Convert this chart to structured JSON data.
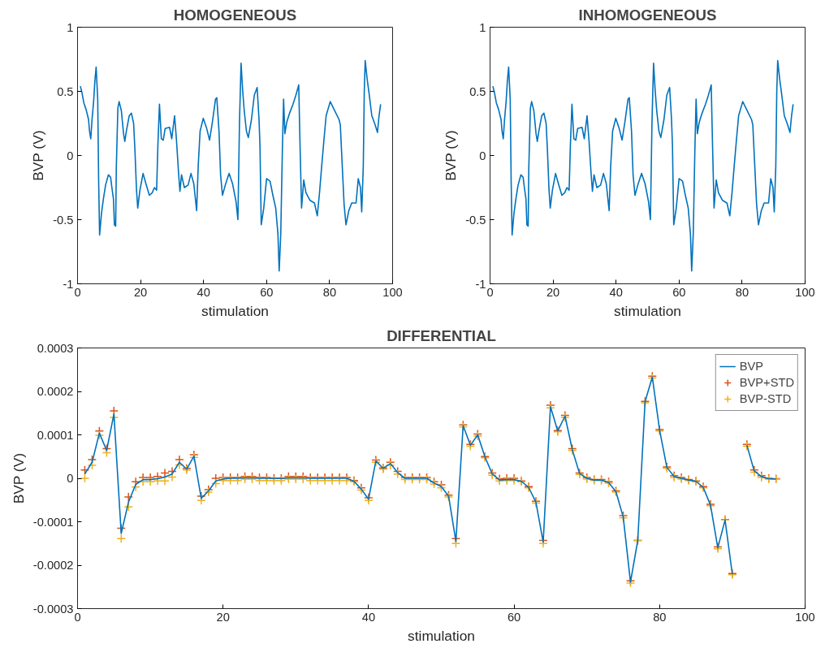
{
  "chart_data": [
    {
      "type": "line",
      "title": "HOMOGENEOUS",
      "xlabel": "stimulation",
      "ylabel": "BVP (V)",
      "color": "#0072bd",
      "x": [
        0.9,
        1.4,
        2.0,
        2.7,
        3.5,
        3.8,
        4.2,
        4.6,
        5.1,
        5.5,
        5.9,
        6.4,
        6.7,
        7.0,
        7.6,
        8.2,
        8.9,
        9.8,
        10.5,
        10.9,
        11.4,
        11.7,
        12.1,
        12.3,
        12.8,
        13.2,
        13.9,
        14.6,
        15.0,
        15.5,
        16.4,
        17.1,
        17.8,
        18.2,
        18.7,
        19.1,
        19.8,
        20.8,
        21.7,
        22.8,
        23.7,
        24.4,
        25.1,
        25.5,
        26.0,
        26.6,
        27.2,
        27.8,
        29.2,
        29.9,
        30.8,
        31.4,
        32.1,
        32.5,
        33.0,
        33.9,
        35.1,
        36.0,
        36.9,
        37.8,
        38.3,
        38.9,
        39.9,
        41.0,
        41.9,
        42.8,
        43.8,
        44.2,
        44.9,
        45.4,
        46.0,
        46.9,
        48.1,
        49.2,
        50.3,
        50.9,
        51.4,
        51.9,
        52.4,
        52.9,
        53.6,
        54.2,
        55.2,
        56.1,
        57.0,
        57.6,
        57.9,
        58.3,
        59.1,
        60.0,
        61.1,
        62.0,
        62.9,
        63.6,
        64.0,
        64.5,
        65.0,
        65.4,
        65.8,
        66.4,
        67.3,
        68.4,
        69.3,
        70.2,
        70.6,
        71.1,
        71.8,
        72.5,
        73.8,
        75.2,
        76.1,
        76.8,
        77.5,
        78.2,
        78.9,
        80.2,
        81.6,
        83.0,
        83.4,
        83.9,
        84.6,
        85.2,
        86.1,
        87.0,
        88.4,
        89.1,
        89.8,
        90.2,
        90.7,
        91.0,
        91.3,
        91.9,
        92.5,
        93.4,
        94.3,
        95.2,
        95.7,
        96.2
      ],
      "values": [
        0.54,
        0.49,
        0.41,
        0.36,
        0.28,
        0.19,
        0.13,
        0.28,
        0.42,
        0.58,
        0.69,
        0.44,
        -0.2,
        -0.62,
        -0.45,
        -0.34,
        -0.23,
        -0.15,
        -0.17,
        -0.25,
        -0.34,
        -0.54,
        -0.55,
        -0.1,
        0.37,
        0.42,
        0.35,
        0.17,
        0.11,
        0.19,
        0.31,
        0.33,
        0.25,
        0.05,
        -0.26,
        -0.41,
        -0.27,
        -0.14,
        -0.22,
        -0.31,
        -0.29,
        -0.25,
        -0.27,
        0.08,
        0.4,
        0.13,
        0.12,
        0.21,
        0.22,
        0.13,
        0.31,
        0.12,
        -0.15,
        -0.28,
        -0.15,
        -0.25,
        -0.23,
        -0.14,
        -0.22,
        -0.43,
        -0.08,
        0.19,
        0.29,
        0.21,
        0.12,
        0.26,
        0.44,
        0.45,
        0.19,
        -0.15,
        -0.31,
        -0.23,
        -0.14,
        -0.22,
        -0.36,
        -0.5,
        0.26,
        0.72,
        0.51,
        0.35,
        0.19,
        0.14,
        0.28,
        0.47,
        0.53,
        0.28,
        0.08,
        -0.54,
        -0.41,
        -0.18,
        -0.2,
        -0.31,
        -0.41,
        -0.61,
        -0.9,
        -0.61,
        0.03,
        0.44,
        0.17,
        0.26,
        0.33,
        0.4,
        0.47,
        0.55,
        0.1,
        -0.41,
        -0.19,
        -0.29,
        -0.35,
        -0.37,
        -0.47,
        -0.29,
        -0.08,
        0.12,
        0.31,
        0.42,
        0.35,
        0.28,
        0.24,
        -0.02,
        -0.38,
        -0.54,
        -0.43,
        -0.37,
        -0.37,
        -0.18,
        -0.25,
        -0.44,
        -0.08,
        0.49,
        0.74,
        0.6,
        0.49,
        0.31,
        0.25,
        0.18,
        0.31,
        0.4
      ],
      "xlim": [
        0,
        100
      ],
      "ylim": [
        -1,
        1
      ],
      "xticks": [
        0,
        20,
        40,
        60,
        80,
        100
      ],
      "yticks": [
        -1,
        -0.5,
        0,
        0.5,
        1
      ],
      "grid": false
    },
    {
      "type": "line",
      "title": "INHOMOGENEOUS",
      "xlabel": "stimulation",
      "ylabel": "BVP (V)",
      "color": "#0072bd",
      "x": [
        0.9,
        1.4,
        2.0,
        2.7,
        3.5,
        3.8,
        4.2,
        4.6,
        5.1,
        5.5,
        5.9,
        6.4,
        6.7,
        7.0,
        7.6,
        8.2,
        8.9,
        9.8,
        10.5,
        10.9,
        11.4,
        11.7,
        12.1,
        12.3,
        12.8,
        13.2,
        13.9,
        14.6,
        15.0,
        15.5,
        16.4,
        17.1,
        17.8,
        18.2,
        18.7,
        19.1,
        19.8,
        20.8,
        21.7,
        22.8,
        23.7,
        24.4,
        25.1,
        25.5,
        26.0,
        26.6,
        27.2,
        27.8,
        29.2,
        29.9,
        30.8,
        31.4,
        32.1,
        32.5,
        33.0,
        33.9,
        35.1,
        36.0,
        36.9,
        37.8,
        38.3,
        38.9,
        39.9,
        41.0,
        41.9,
        42.8,
        43.8,
        44.2,
        44.9,
        45.4,
        46.0,
        46.9,
        48.1,
        49.2,
        50.3,
        50.9,
        51.4,
        51.9,
        52.4,
        52.9,
        53.6,
        54.2,
        55.2,
        56.1,
        57.0,
        57.6,
        57.9,
        58.3,
        59.1,
        60.0,
        61.1,
        62.0,
        62.9,
        63.6,
        64.0,
        64.5,
        65.0,
        65.4,
        65.8,
        66.4,
        67.3,
        68.4,
        69.3,
        70.2,
        70.6,
        71.1,
        71.8,
        72.5,
        73.8,
        75.2,
        76.1,
        76.8,
        77.5,
        78.2,
        78.9,
        80.2,
        81.6,
        83.0,
        83.4,
        83.9,
        84.6,
        85.2,
        86.1,
        87.0,
        88.4,
        89.1,
        89.8,
        90.2,
        90.7,
        91.0,
        91.3,
        91.9,
        92.5,
        93.4,
        94.3,
        95.2,
        95.7,
        96.2
      ],
      "values": [
        0.54,
        0.49,
        0.41,
        0.36,
        0.28,
        0.19,
        0.13,
        0.28,
        0.42,
        0.58,
        0.69,
        0.44,
        -0.2,
        -0.62,
        -0.45,
        -0.34,
        -0.23,
        -0.15,
        -0.17,
        -0.25,
        -0.34,
        -0.54,
        -0.55,
        -0.1,
        0.37,
        0.42,
        0.35,
        0.17,
        0.11,
        0.19,
        0.31,
        0.33,
        0.25,
        0.05,
        -0.26,
        -0.41,
        -0.27,
        -0.14,
        -0.22,
        -0.31,
        -0.29,
        -0.25,
        -0.27,
        0.08,
        0.4,
        0.13,
        0.12,
        0.21,
        0.22,
        0.13,
        0.31,
        0.12,
        -0.15,
        -0.28,
        -0.15,
        -0.25,
        -0.23,
        -0.14,
        -0.22,
        -0.43,
        -0.08,
        0.19,
        0.29,
        0.21,
        0.12,
        0.26,
        0.44,
        0.45,
        0.19,
        -0.15,
        -0.31,
        -0.23,
        -0.14,
        -0.22,
        -0.36,
        -0.5,
        0.26,
        0.72,
        0.51,
        0.35,
        0.19,
        0.14,
        0.28,
        0.47,
        0.53,
        0.28,
        0.08,
        -0.54,
        -0.41,
        -0.18,
        -0.2,
        -0.31,
        -0.41,
        -0.61,
        -0.9,
        -0.61,
        0.03,
        0.44,
        0.17,
        0.26,
        0.33,
        0.4,
        0.47,
        0.55,
        0.1,
        -0.41,
        -0.19,
        -0.29,
        -0.35,
        -0.37,
        -0.47,
        -0.29,
        -0.08,
        0.12,
        0.31,
        0.42,
        0.35,
        0.28,
        0.24,
        -0.02,
        -0.38,
        -0.54,
        -0.43,
        -0.37,
        -0.37,
        -0.18,
        -0.25,
        -0.44,
        -0.08,
        0.49,
        0.74,
        0.6,
        0.49,
        0.31,
        0.25,
        0.18,
        0.31,
        0.4
      ],
      "xlim": [
        0,
        100
      ],
      "ylim": [
        -1,
        1
      ],
      "xticks": [
        0,
        20,
        40,
        60,
        80,
        100
      ],
      "yticks": [
        -1,
        -0.5,
        0,
        0.5,
        1
      ],
      "grid": false
    },
    {
      "type": "line",
      "title": "DIFFERENTIAL",
      "xlabel": "stimulation",
      "ylabel": "BVP (V)",
      "x": [
        1,
        2,
        3,
        4,
        5,
        6,
        7,
        8,
        9,
        10,
        11,
        12,
        13,
        14,
        15,
        16,
        17,
        18,
        19,
        20,
        21,
        22,
        23,
        24,
        25,
        26,
        27,
        28,
        29,
        30,
        31,
        32,
        33,
        34,
        35,
        36,
        37,
        38,
        39,
        40,
        41,
        42,
        43,
        44,
        45,
        46,
        47,
        48,
        49,
        50,
        51,
        52,
        53,
        54,
        55,
        56,
        57,
        58,
        59,
        60,
        61,
        62,
        63,
        64,
        65,
        66,
        67,
        68,
        69,
        70,
        71,
        72,
        73,
        74,
        75,
        76,
        77,
        78,
        79,
        80,
        81,
        82,
        83,
        84,
        85,
        86,
        87,
        88,
        89,
        90,
        91,
        92,
        93,
        94,
        95,
        96
      ],
      "series": [
        {
          "name": "BVP",
          "type": "line",
          "color": "#0072bd",
          "values": [
            1e-05,
            3.7e-05,
            0.000104,
            6.4e-05,
            0.000148,
            -0.000127,
            -5.5e-05,
            -1.4e-05,
            -3e-06,
            -3e-06,
            -1e-06,
            3e-06,
            1e-05,
            3.7e-05,
            2.1e-05,
            5.1e-05,
            -4.6e-05,
            -2.9e-05,
            -6e-06,
            -2e-06,
            0,
            0,
            1e-06,
            1e-06,
            0,
            0,
            0,
            0,
            1e-06,
            1e-06,
            1e-06,
            0,
            0,
            0,
            0,
            0,
            0,
            -7e-06,
            -2.5e-05,
            -4.8e-05,
            4e-05,
            2.3e-05,
            3.4e-05,
            1.3e-05,
            0,
            0,
            0,
            0,
            -1.1e-05,
            -1.9e-05,
            -4.1e-05,
            -0.000145,
            0.000121,
            7.6e-05,
            0.0001,
            4.9e-05,
            1e-05,
            -4e-06,
            -3e-06,
            -3e-06,
            -7e-06,
            -2.1e-05,
            -5.5e-05,
            -0.000147,
            0.000165,
            0.000109,
            0.000143,
            6.6e-05,
            1.1e-05,
            0,
            -4e-06,
            -4e-06,
            -1e-05,
            -3.1e-05,
            -8.9e-05,
            -0.000239,
            -0.000143,
            0.000176,
            0.000233,
            0.000111,
            2.5e-05,
            4e-06,
            0,
            -4e-06,
            -7e-06,
            -2.1e-05,
            -6.2e-05,
            -0.00016,
            -9.6e-05,
            -0.000221,
            null,
            7.6e-05,
            1.7e-05,
            4e-06,
            -1e-06,
            -2e-06
          ]
        },
        {
          "name": "BVP+STD",
          "type": "scatter",
          "marker": "cross",
          "color": "#d95319",
          "values": [
            1.9e-05,
            4.3e-05,
            0.000109,
            6.8e-05,
            0.000155,
            -0.000115,
            -4.3e-05,
            -8e-06,
            2e-06,
            2e-06,
            4e-06,
            1.2e-05,
            1.6e-05,
            4.3e-05,
            2.3e-05,
            5.4e-05,
            -4.1e-05,
            -2.6e-05,
            0,
            2e-06,
            2e-06,
            2e-06,
            4e-06,
            4e-06,
            2e-06,
            2e-06,
            0,
            0,
            4e-06,
            4e-06,
            4e-06,
            2e-06,
            2e-06,
            2e-06,
            2e-06,
            2e-06,
            2e-06,
            -5e-06,
            -2.2e-05,
            -4.5e-05,
            4.2e-05,
            2.4e-05,
            3.7e-05,
            1.6e-05,
            2e-06,
            2e-06,
            2e-06,
            2e-06,
            -8e-06,
            -1.5e-05,
            -3.9e-05,
            -0.000139,
            0.000123,
            7.8e-05,
            0.000102,
            5e-05,
            1.2e-05,
            -1e-06,
            0,
            0,
            -6e-06,
            -1.9e-05,
            -5.3e-05,
            -0.000143,
            0.000168,
            0.00011,
            0.000145,
            6.8e-05,
            1.2e-05,
            2e-06,
            -3e-06,
            -3e-06,
            -8e-06,
            -2.9e-05,
            -8.6e-05,
            -0.000236,
            -0.000143,
            0.000177,
            0.000235,
            0.000112,
            2.6e-05,
            6e-06,
            2e-06,
            -3e-06,
            -6e-06,
            -1.9e-05,
            -6e-05,
            -0.000158,
            -9.5e-05,
            -0.000219,
            null,
            7.8e-05,
            1.9e-05,
            6e-06,
            0,
            -1e-06
          ]
        },
        {
          "name": "BVP-STD",
          "type": "scatter",
          "marker": "cross",
          "color": "#edb120",
          "values": [
            0,
            3e-05,
            9.9e-05,
            5.9e-05,
            0.00014,
            -0.000139,
            -6.6e-05,
            -2e-05,
            -8e-06,
            -8e-06,
            -6e-06,
            -6e-06,
            3e-06,
            3.1e-05,
            1.9e-05,
            4.8e-05,
            -5.1e-05,
            -3.2e-05,
            -1.2e-05,
            -5e-06,
            -5e-06,
            -5e-06,
            -2e-06,
            -2e-06,
            -5e-06,
            -5e-06,
            -5e-06,
            -5e-06,
            -2e-06,
            -2e-06,
            -2e-06,
            -5e-06,
            -5e-06,
            -5e-06,
            -5e-06,
            -5e-06,
            -5e-06,
            -8e-06,
            -2.7e-05,
            -5.1e-05,
            3.7e-05,
            2.1e-05,
            3e-05,
            1e-05,
            -3e-06,
            -3e-06,
            -3e-06,
            -3e-06,
            -1.3e-05,
            -2.2e-05,
            -4.3e-05,
            -0.00015,
            0.000118,
            7.4e-05,
            9.7e-05,
            4.7e-05,
            7e-06,
            -6e-06,
            -5e-06,
            -5e-06,
            -8e-06,
            -2.2e-05,
            -5.7e-05,
            -0.00015,
            0.000162,
            0.000107,
            0.00014,
            6.4e-05,
            9e-06,
            -2e-06,
            -5e-06,
            -5e-06,
            -1.1e-05,
            -3.2e-05,
            -9.1e-05,
            -0.000241,
            -0.000143,
            0.000174,
            0.000231,
            0.000109,
            2.3e-05,
            2e-06,
            -2e-06,
            -5e-06,
            -8e-06,
            -2.2e-05,
            -6.3e-05,
            -0.000162,
            -9.6e-05,
            -0.000222,
            null,
            7.4e-05,
            1.4e-05,
            2e-06,
            -2e-06,
            -2e-06
          ]
        }
      ],
      "xlim": [
        0,
        100
      ],
      "ylim": [
        -0.0003,
        0.0003
      ],
      "xticks": [
        0,
        20,
        40,
        60,
        80,
        100
      ],
      "yticks": [
        -0.0003,
        -0.0002,
        -0.0001,
        0,
        0.0001,
        0.0002,
        0.0003
      ],
      "grid": false,
      "legend": "top right"
    }
  ]
}
